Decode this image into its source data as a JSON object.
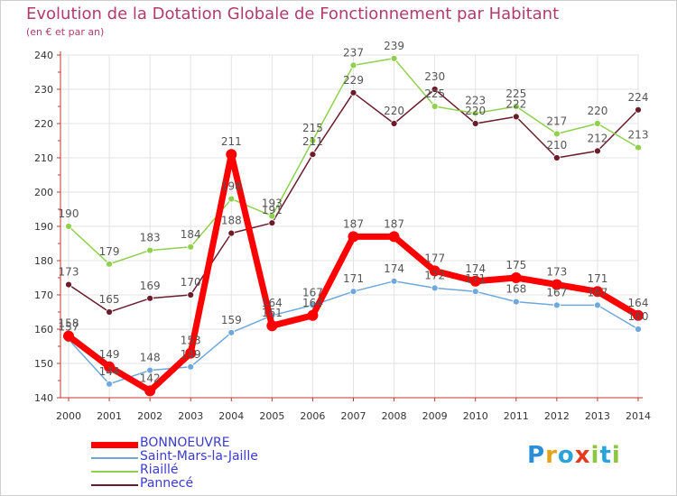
{
  "title": "Evolution de la Dotation Globale de Fonctionnement par Habitant",
  "subtitle": "(en € et par an)",
  "logo": {
    "letters": [
      "P",
      "r",
      "o",
      "x",
      "i",
      "t",
      "i"
    ],
    "colors": [
      "#2a8fd8",
      "#e6a317",
      "#2aa4d8",
      "#e63a1f",
      "#8dc63f",
      "#2aa4d8",
      "#8dc63f"
    ]
  },
  "chart_data": {
    "type": "line",
    "title": "Evolution de la Dotation Globale de Fonctionnement par Habitant",
    "subtitle": "(en € et par an)",
    "xlabel": "",
    "ylabel": "",
    "x": [
      "2000",
      "2001",
      "2002",
      "2003",
      "2004",
      "2005",
      "2006",
      "2007",
      "2008",
      "2009",
      "2010",
      "2011",
      "2012",
      "2013",
      "2014"
    ],
    "ylim": [
      140,
      240
    ],
    "yticks": [
      "140",
      "150",
      "160",
      "170",
      "180",
      "190",
      "200",
      "210",
      "220",
      "230",
      "240"
    ],
    "grid": true,
    "legend_position": "bottom-left",
    "series": [
      {
        "name": "Pannecé",
        "color": "#6b1c2a",
        "values": [
          173,
          165,
          169,
          170,
          188,
          191,
          211,
          229,
          220,
          230,
          220,
          222,
          210,
          212,
          224
        ]
      },
      {
        "name": "Riaillé",
        "color": "#8fd14f",
        "values": [
          190,
          179,
          183,
          184,
          198,
          193,
          215,
          237,
          239,
          225,
          223,
          225,
          217,
          220,
          213
        ]
      },
      {
        "name": "Saint-Mars-la-Jaille",
        "color": "#6fa8dc",
        "values": [
          157,
          144,
          148,
          149,
          159,
          164,
          167,
          171,
          174,
          172,
          171,
          168,
          167,
          167,
          160
        ]
      },
      {
        "name": "BONNOEUVRE",
        "color": "#ff0000",
        "values": [
          158,
          149,
          142,
          153,
          211,
          161,
          164,
          187,
          187,
          177,
          174,
          175,
          173,
          171,
          164
        ]
      }
    ],
    "labels": {
      "Pannecé": [
        "173",
        "165",
        "169",
        "170",
        "188",
        "191",
        "211",
        "229",
        "220",
        "230",
        "220",
        "222",
        "210",
        "212",
        "224"
      ],
      "Riaillé": [
        "190",
        "179",
        "183",
        "184",
        "198",
        "193",
        "215",
        "237",
        "239",
        "225",
        "223",
        "225",
        "217",
        "220",
        "213"
      ],
      "Saint-Mars-la-Jaille": [
        "157",
        "144",
        "148",
        "149",
        "159",
        "164",
        "167",
        "171",
        "174",
        "172",
        "171",
        "168",
        "167",
        "167",
        "160"
      ],
      "BONNOEUVRE": [
        "158",
        "149",
        "142",
        "153",
        "211",
        "161",
        "164",
        "187",
        "187",
        "177",
        "174",
        "175",
        "173",
        "171",
        "164"
      ]
    }
  },
  "legend": [
    {
      "name": "BONNOEUVRE",
      "color": "#ff0000",
      "text_color": "#3b3bd1",
      "thickness": 7
    },
    {
      "name": "Saint-Mars-la-Jaille",
      "color": "#6fa8dc",
      "text_color": "#3b3bd1",
      "thickness": 2
    },
    {
      "name": "Riaillé",
      "color": "#8fd14f",
      "text_color": "#3b3bd1",
      "thickness": 2
    },
    {
      "name": "Pannecé",
      "color": "#6b1c2a",
      "text_color": "#3b3bd1",
      "thickness": 2
    }
  ]
}
